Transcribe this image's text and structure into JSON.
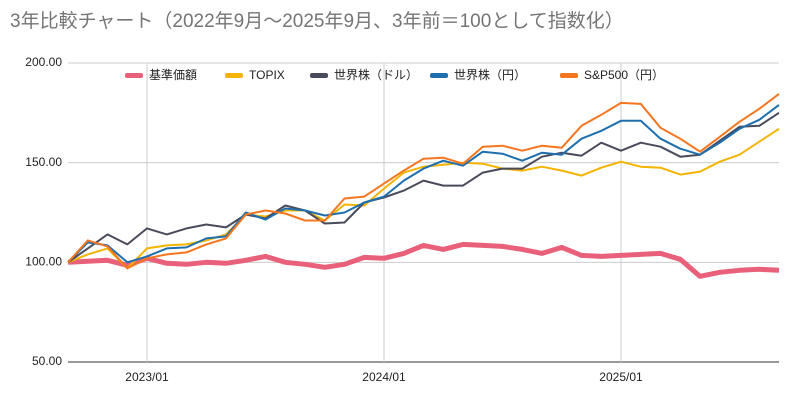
{
  "chart_data": {
    "type": "line",
    "title": "3年比較チャート（2022年9月〜2025年9月、3年前＝100として指数化）",
    "x": [
      "2022/09",
      "2022/10",
      "2022/11",
      "2022/12",
      "2023/01",
      "2023/02",
      "2023/03",
      "2023/04",
      "2023/05",
      "2023/06",
      "2023/07",
      "2023/08",
      "2023/09",
      "2023/10",
      "2023/11",
      "2023/12",
      "2024/01",
      "2024/02",
      "2024/03",
      "2024/04",
      "2024/05",
      "2024/06",
      "2024/07",
      "2024/08",
      "2024/09",
      "2024/10",
      "2024/11",
      "2024/12",
      "2025/01",
      "2025/02",
      "2025/03",
      "2025/04",
      "2025/05",
      "2025/06",
      "2025/07",
      "2025/08",
      "2025/09"
    ],
    "xticks": [
      "2023/01",
      "2024/01",
      "2025/01"
    ],
    "ylim": [
      50,
      200
    ],
    "yticks": [
      {
        "value": 50,
        "label": "50.00"
      },
      {
        "value": 100,
        "label": "100.00"
      },
      {
        "value": 150,
        "label": "150.00"
      },
      {
        "value": 200,
        "label": "200.00"
      }
    ],
    "grid": true,
    "legend": "top",
    "series": [
      {
        "name": "基準価額",
        "color": "#e8607a",
        "values": [
          100,
          100.5,
          101,
          98.5,
          102,
          99.5,
          99,
          100,
          99.5,
          101,
          103,
          100,
          99,
          97.5,
          99,
          102.5,
          102,
          104.5,
          108.5,
          106.5,
          109,
          108.5,
          108,
          106.5,
          104.5,
          107.5,
          103.5,
          103,
          103.5,
          104,
          104.5,
          101.5,
          93,
          95,
          96,
          96.5,
          96
        ]
      },
      {
        "name": "TOPIX",
        "color": "#f4b400",
        "values": [
          100,
          104,
          107,
          97,
          107,
          108.5,
          109,
          111,
          114,
          124,
          123,
          126,
          126,
          121,
          129,
          128.5,
          137,
          145,
          148,
          149,
          150,
          149.5,
          147,
          146,
          148,
          146,
          143.5,
          147.5,
          150.5,
          148,
          147.5,
          144,
          145.5,
          150.5,
          154,
          160.5,
          167
        ]
      },
      {
        "name": "世界株（ドル）",
        "color": "#494b5c",
        "values": [
          100,
          107,
          114,
          109,
          117,
          114,
          117,
          119,
          117.5,
          124,
          122,
          128.5,
          126,
          119.5,
          120,
          130,
          132.5,
          136,
          141,
          138.5,
          138.5,
          145,
          147,
          147,
          153,
          155,
          153.5,
          160,
          156,
          160,
          158,
          153,
          154,
          161,
          168,
          168.5,
          175
        ]
      },
      {
        "name": "世界株（円）",
        "color": "#1f6fae",
        "values": [
          100,
          110,
          108.5,
          100,
          103,
          107,
          107.5,
          112,
          113,
          125,
          121.5,
          127,
          126,
          123.5,
          125,
          130,
          133,
          141,
          147,
          151,
          148.5,
          155.5,
          154.5,
          151,
          155,
          154,
          162,
          166,
          171,
          171,
          162,
          157,
          154,
          160,
          167,
          171.5,
          179
        ]
      },
      {
        "name": "S&P500（円）",
        "color": "#f5761f",
        "values": [
          100,
          111,
          108,
          97,
          102,
          104,
          105,
          109,
          112,
          124,
          126,
          124.5,
          121,
          121,
          132,
          133,
          139.5,
          146,
          152,
          152.5,
          149.5,
          158,
          158.5,
          156,
          158.5,
          157.5,
          168.5,
          174,
          180,
          179.5,
          167.5,
          162,
          155.5,
          163,
          170.5,
          177,
          184.5
        ]
      }
    ]
  }
}
